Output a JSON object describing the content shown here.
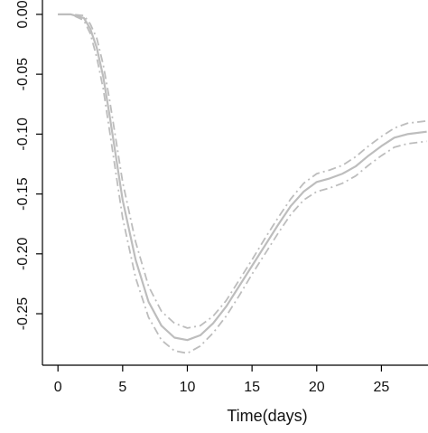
{
  "chart_data": {
    "type": "line",
    "title": "",
    "xlabel": "Time(days)",
    "ylabel": "",
    "xlim": [
      -1.2,
      28.6
    ],
    "ylim": [
      -0.293,
      0.012
    ],
    "grid": false,
    "legend": "none",
    "x_ticks": [
      0,
      5,
      10,
      15,
      20,
      25
    ],
    "x_tick_labels": [
      "0",
      "5",
      "10",
      "15",
      "20",
      "25"
    ],
    "y_ticks": [
      0.0,
      -0.05,
      -0.1,
      -0.15,
      -0.2,
      -0.25
    ],
    "y_tick_labels": [
      "0.00",
      "-0.05",
      "-0.10",
      "-0.15",
      "-0.20",
      "-0.25"
    ],
    "series": [
      {
        "role": "estimate",
        "style": "solid",
        "color": "#bdbdbd",
        "x": [
          0,
          1,
          2,
          2.5,
          3,
          3.5,
          4,
          5,
          6,
          7,
          8,
          9,
          10,
          11,
          12,
          13,
          14,
          15,
          16,
          17,
          18,
          19,
          20,
          21,
          22,
          23,
          24,
          25,
          26,
          27,
          28.5
        ],
        "y": [
          0.0,
          0.0,
          -0.003,
          -0.012,
          -0.028,
          -0.052,
          -0.085,
          -0.155,
          -0.205,
          -0.24,
          -0.26,
          -0.27,
          -0.272,
          -0.268,
          -0.258,
          -0.244,
          -0.227,
          -0.21,
          -0.193,
          -0.176,
          -0.16,
          -0.148,
          -0.14,
          -0.137,
          -0.133,
          -0.127,
          -0.118,
          -0.11,
          -0.103,
          -0.1,
          -0.098
        ]
      },
      {
        "role": "upper-bound",
        "style": "dashdot",
        "color": "#bdbdbd",
        "x": [
          0,
          1,
          2,
          2.5,
          3,
          3.5,
          4,
          5,
          6,
          7,
          8,
          9,
          10,
          11,
          12,
          13,
          14,
          15,
          16,
          17,
          18,
          19,
          20,
          21,
          22,
          23,
          24,
          25,
          26,
          27,
          28.5
        ],
        "y": [
          0.0,
          0.0,
          -0.001,
          -0.008,
          -0.02,
          -0.042,
          -0.072,
          -0.14,
          -0.19,
          -0.227,
          -0.248,
          -0.258,
          -0.262,
          -0.26,
          -0.252,
          -0.239,
          -0.222,
          -0.205,
          -0.187,
          -0.17,
          -0.154,
          -0.141,
          -0.133,
          -0.13,
          -0.126,
          -0.119,
          -0.11,
          -0.102,
          -0.095,
          -0.091,
          -0.089
        ]
      },
      {
        "role": "lower-bound",
        "style": "dashdot",
        "color": "#bdbdbd",
        "x": [
          0,
          1,
          2,
          2.5,
          3,
          3.5,
          4,
          5,
          6,
          7,
          8,
          9,
          10,
          11,
          12,
          13,
          14,
          15,
          16,
          17,
          18,
          19,
          20,
          21,
          22,
          23,
          24,
          25,
          26,
          27,
          28.5
        ],
        "y": [
          0.0,
          0.0,
          -0.005,
          -0.016,
          -0.036,
          -0.062,
          -0.098,
          -0.17,
          -0.22,
          -0.253,
          -0.272,
          -0.281,
          -0.283,
          -0.277,
          -0.266,
          -0.252,
          -0.235,
          -0.217,
          -0.2,
          -0.183,
          -0.167,
          -0.155,
          -0.148,
          -0.145,
          -0.141,
          -0.135,
          -0.126,
          -0.118,
          -0.111,
          -0.108,
          -0.106
        ]
      }
    ]
  }
}
